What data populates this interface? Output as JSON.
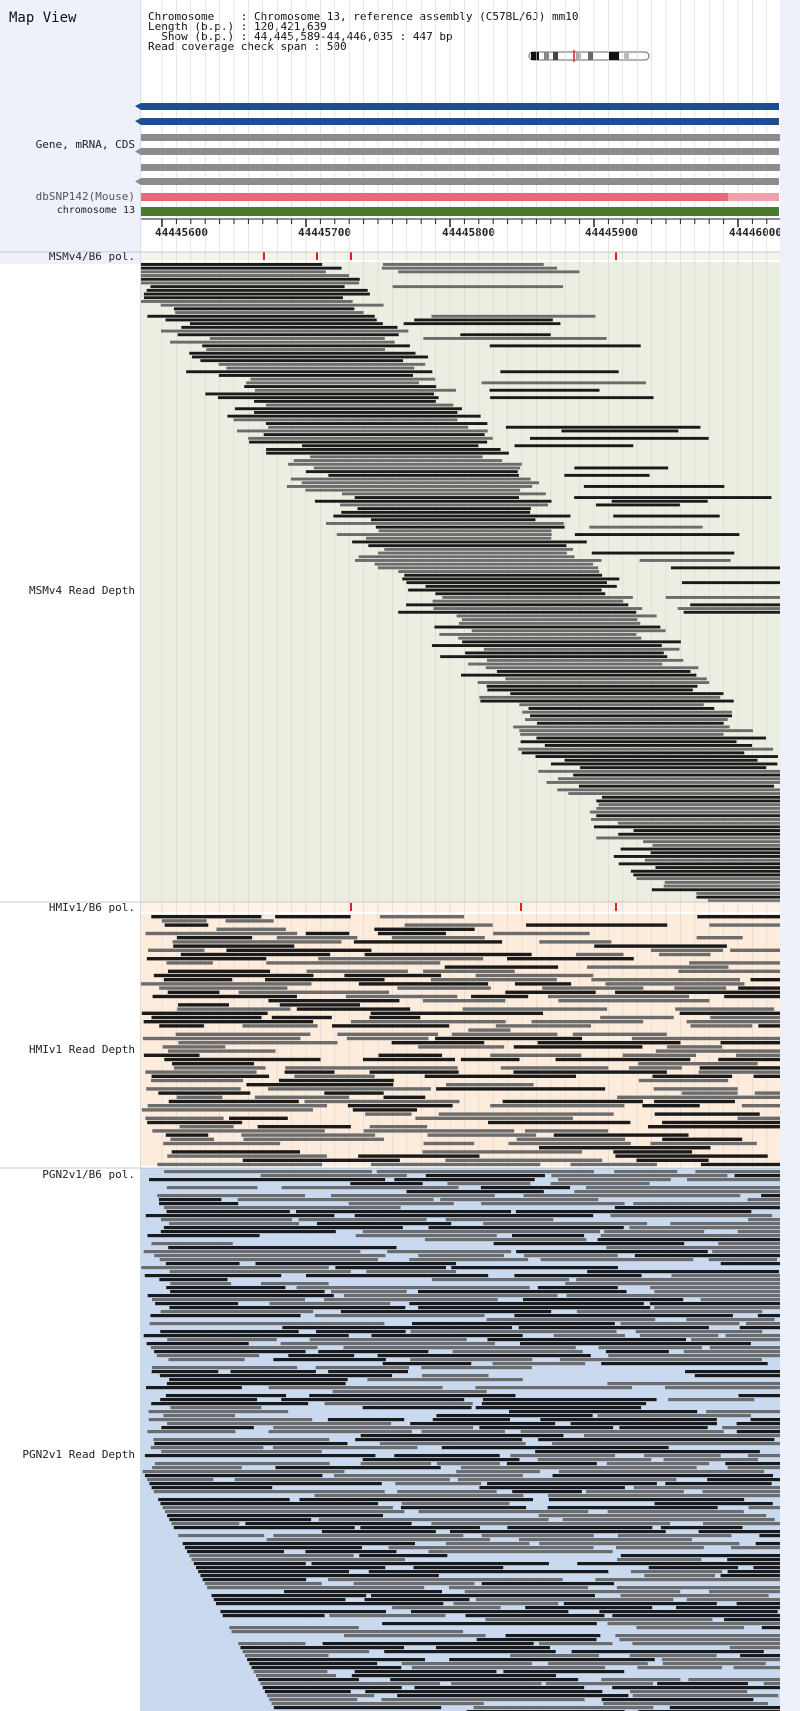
{
  "title": "Map View",
  "info": {
    "chromosome_line": "Chromosome    : Chromosome 13, reference assembly (C57BL/6J) mm10",
    "length_line": "Length (b.p.) : 120,421,639",
    "show_line": "  Show (b.p.) : 44,445,589-44,446,035 : 447 bp",
    "span_line": "Read coverage check span : 500"
  },
  "tracks": {
    "gene": "Gene, mRNA, CDS",
    "dbsnp": "dbSNP142(Mouse)",
    "chromosome": "chromosome 13",
    "msm_pol": "MSMv4/B6 pol.",
    "msm_depth": "MSMv4 Read Depth",
    "hmi_pol": "HMIv1/B6 pol.",
    "hmi_depth": "HMIv1 Read Depth",
    "pgn_pol": "PGN2v1/B6 pol.",
    "pgn_depth": "PGN2v1 Read Depth"
  },
  "ruler": {
    "ticks": [
      "44445600",
      "44445700",
      "44445800",
      "44445900",
      "44446000"
    ]
  },
  "colors": {
    "sidebar": "#eef1fa",
    "gene_blue": "#1f4e8c",
    "gene_gray": "#8c8c8c",
    "dbsnp": "#e86a7a",
    "chromosome": "#4a7a2c",
    "msm_bg": "#eaefe1",
    "hmi_bg": "#fdebdc",
    "pgn_bg": "#c9daf0",
    "snp_mark": "#e02020"
  }
}
